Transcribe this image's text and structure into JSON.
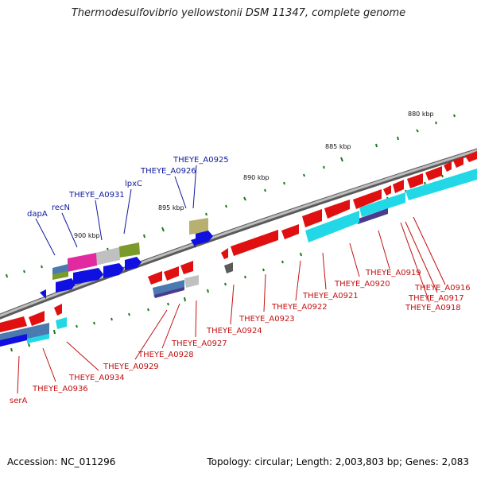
{
  "title": "Thermodesulfovibrio yellowstonii DSM 11347, complete genome",
  "footer": {
    "accession": "Accession: NC_011296",
    "summary": "Topology: circular; Length: 2,003,803 bp; Genes: 2,083"
  },
  "ticks": [
    "880 kbp",
    "885 kbp",
    "890 kbp",
    "895 kbp",
    "900 kbp"
  ],
  "genes_top": [
    "THEYE_A0925",
    "THEYE_A0926",
    "lpxC",
    "THEYE_A0931",
    "recN",
    "dapA"
  ],
  "genes_bottom": [
    "THEYE_A0916",
    "THEYE_A0917",
    "THEYE_A0918",
    "THEYE_A0919",
    "THEYE_A0920",
    "THEYE_A0921",
    "THEYE_A0922",
    "THEYE_A0923",
    "THEYE_A0924",
    "THEYE_A0927",
    "THEYE_A0928",
    "THEYE_A0929",
    "THEYE_A0934",
    "THEYE_A0936",
    "serA"
  ],
  "colors": {
    "forward_cds": "#e01010",
    "reverse_cds": "#1010e0",
    "backbone": "#8a8a8a",
    "tick": "#1a7a1a",
    "label_blue": "#0d1a9a",
    "label_red": "#c21111",
    "cyan_track": "#22d8e6",
    "pink_track": "#e22aa0",
    "olive_track": "#7a9a2a",
    "gray_track": "#c0c0c0",
    "steel_track": "#4a7ab0",
    "purple_track": "#4a3a90",
    "khaki_track": "#b8b070"
  }
}
